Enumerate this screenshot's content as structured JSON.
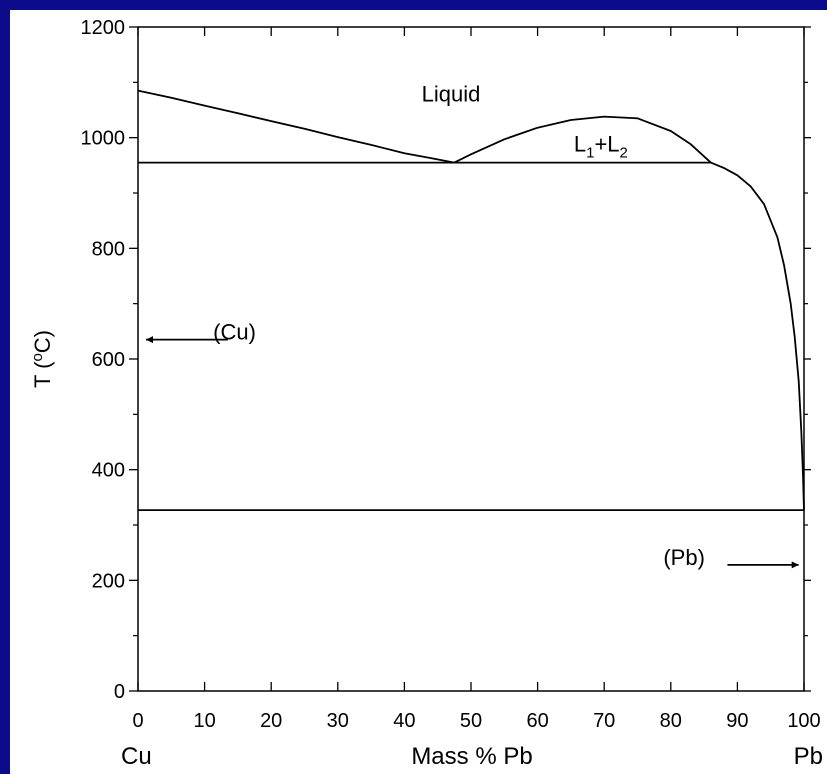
{
  "chart_data": {
    "type": "line",
    "title": "",
    "xlabel": "Mass % Pb",
    "ylabel_main": "T (",
    "ylabel_sup": "o",
    "ylabel_rest": "C)",
    "xlim": [
      0,
      100
    ],
    "ylim": [
      0,
      1200
    ],
    "xticks": [
      0,
      10,
      20,
      30,
      40,
      50,
      60,
      70,
      80,
      90,
      100
    ],
    "yticks": [
      0,
      200,
      400,
      600,
      800,
      1000,
      1200
    ],
    "left_element": "Cu",
    "right_element": "Pb",
    "grid": false,
    "series": [
      {
        "x": [
          0,
          5,
          10,
          15,
          20,
          25,
          30,
          35,
          40,
          44,
          47.5
        ],
        "y": [
          1085,
          1072,
          1058,
          1044,
          1030,
          1016,
          1001,
          987,
          972,
          963,
          955
        ]
      },
      {
        "x": [
          47.5,
          50,
          55,
          60,
          65,
          70,
          75,
          80,
          83,
          86
        ],
        "y": [
          955,
          970,
          997,
          1018,
          1032,
          1038,
          1035,
          1012,
          988,
          955
        ]
      },
      {
        "x": [
          86,
          88,
          90,
          92,
          94,
          96,
          97,
          98,
          98.6,
          99.2,
          99.6,
          99.85,
          100
        ],
        "y": [
          955,
          945,
          932,
          912,
          880,
          820,
          770,
          700,
          640,
          560,
          470,
          390,
          327
        ]
      },
      {
        "x": [
          0,
          86
        ],
        "y": [
          955,
          955
        ]
      },
      {
        "x": [
          0,
          100
        ],
        "y": [
          327,
          327
        ]
      }
    ],
    "annotations": [
      {
        "text": "Liquid",
        "x": 47,
        "y": 1065
      },
      {
        "text": "(Cu)",
        "x": 14.5,
        "y": 635
      },
      {
        "text": "(Pb)",
        "x": 82,
        "y": 228
      }
    ],
    "l1l2": {
      "l": "L",
      "s1": "1",
      "plus": "+L",
      "s2": "2",
      "x": 69.5,
      "y": 975
    },
    "arrows": [
      {
        "from_x": 13.5,
        "to_x": 1.2,
        "y": 635
      },
      {
        "from_x": 88.5,
        "to_x": 99.2,
        "y": 228
      }
    ]
  }
}
